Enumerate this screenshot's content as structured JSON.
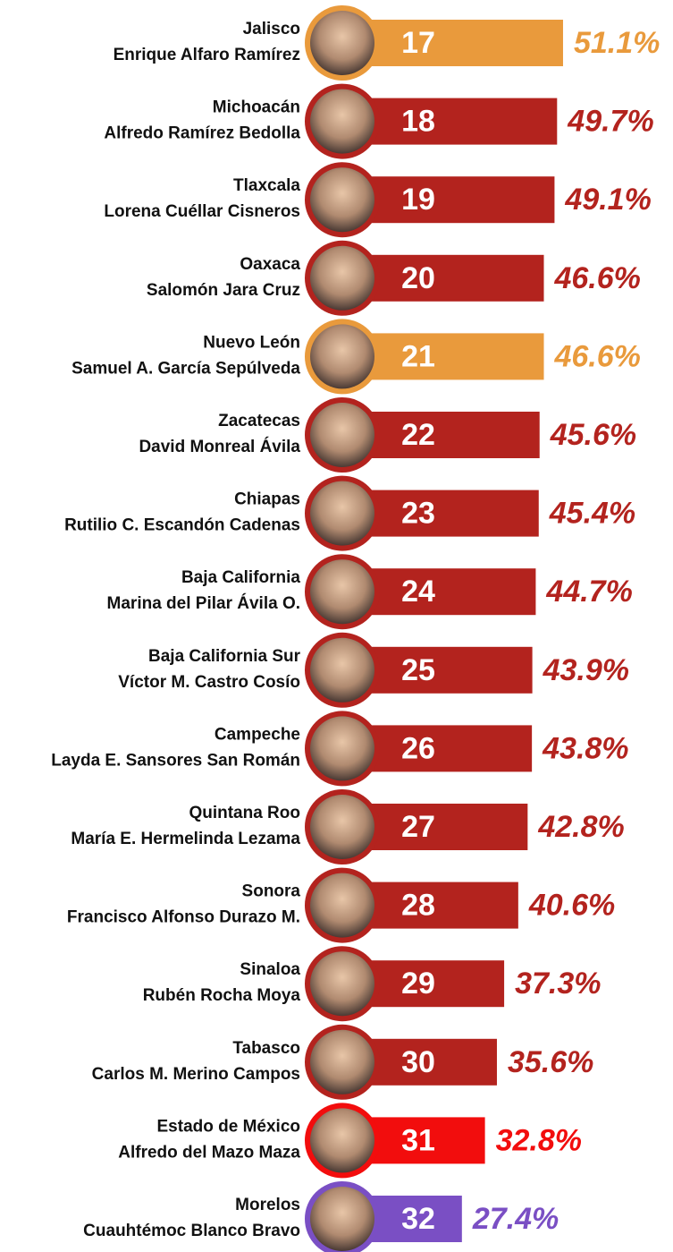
{
  "chart_data": {
    "type": "bar",
    "orientation": "horizontal",
    "categories": [
      "Jalisco",
      "Michoacán",
      "Tlaxcala",
      "Oaxaca",
      "Nuevo León",
      "Zacatecas",
      "Chiapas",
      "Baja California",
      "Baja California Sur",
      "Campeche",
      "Quintana Roo",
      "Sonora",
      "Sinaloa",
      "Tabasco",
      "Estado de México",
      "Morelos"
    ],
    "governors": [
      "Enrique Alfaro Ramírez",
      "Alfredo Ramírez Bedolla",
      "Lorena Cuéllar Cisneros",
      "Salomón Jara Cruz",
      "Samuel A. García Sepúlveda",
      "David Monreal Ávila",
      "Rutilio C. Escandón Cadenas",
      "Marina del Pilar Ávila O.",
      "Víctor M. Castro Cosío",
      "Layda E. Sansores San Román",
      "María E. Hermelinda Lezama",
      "Francisco Alfonso Durazo M.",
      "Rubén Rocha Moya",
      "Carlos M. Merino Campos",
      "Alfredo del Mazo Maza",
      "Cuauhtémoc Blanco Bravo"
    ],
    "ranks": [
      17,
      18,
      19,
      20,
      21,
      22,
      23,
      24,
      25,
      26,
      27,
      28,
      29,
      30,
      31,
      32
    ],
    "values": [
      51.1,
      49.7,
      49.1,
      46.6,
      46.6,
      45.6,
      45.4,
      44.7,
      43.9,
      43.8,
      42.8,
      40.6,
      37.3,
      35.6,
      32.8,
      27.4
    ],
    "value_labels": [
      "51.1%",
      "49.7%",
      "49.1%",
      "46.6%",
      "46.6%",
      "45.6%",
      "45.4%",
      "44.7%",
      "43.9%",
      "43.8%",
      "42.8%",
      "40.6%",
      "37.3%",
      "35.6%",
      "32.8%",
      "27.4%"
    ],
    "colors": [
      "#e99a3c",
      "#b3231e",
      "#b3231e",
      "#b3231e",
      "#e99a3c",
      "#b3231e",
      "#b3231e",
      "#b3231e",
      "#b3231e",
      "#b3231e",
      "#b3231e",
      "#b3231e",
      "#b3231e",
      "#b3231e",
      "#f20d0d",
      "#7a4fc4"
    ],
    "xlim": [
      0,
      55
    ]
  }
}
